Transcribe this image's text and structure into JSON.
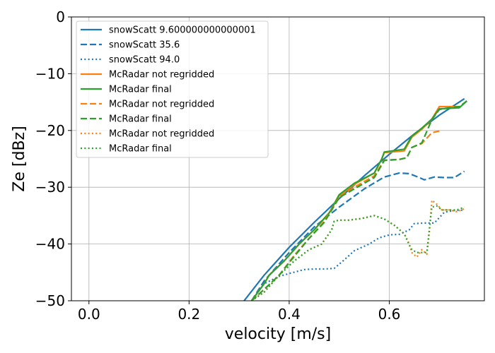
{
  "chart_data": {
    "type": "line",
    "xlabel": "velocity [m/s]",
    "ylabel": "Ze [dBz]",
    "xlim": [
      -0.035,
      0.79
    ],
    "ylim": [
      -50,
      0
    ],
    "xticks": [
      0.0,
      0.2,
      0.4,
      0.6
    ],
    "xtick_labels": [
      "0.0",
      "0.2",
      "0.4",
      "0.6"
    ],
    "yticks": [
      0,
      -10,
      -20,
      -30,
      -40,
      -50
    ],
    "ytick_labels": [
      "0",
      "−10",
      "−20",
      "−30",
      "−40",
      "−50"
    ],
    "grid": true,
    "legend_placement": "upper-left",
    "colors": {
      "blue": "#1f77b4",
      "orange": "#ff7f0e",
      "green": "#2ca02c"
    },
    "series": [
      {
        "name": "snowScatt 9.600000000000001",
        "color": "#1f77b4",
        "style": "solid",
        "x": [
          0.31,
          0.35,
          0.4,
          0.45,
          0.5,
          0.55,
          0.6,
          0.65,
          0.7,
          0.75
        ],
        "y": [
          -50.0,
          -45.5,
          -40.6,
          -36.2,
          -32.0,
          -28.0,
          -24.2,
          -20.6,
          -17.3,
          -14.4
        ]
      },
      {
        "name": "snowScatt 35.6",
        "color": "#1f77b4",
        "style": "dashed",
        "x": [
          0.325,
          0.35,
          0.4,
          0.45,
          0.5,
          0.55,
          0.59,
          0.62,
          0.64,
          0.66,
          0.67,
          0.69,
          0.71,
          0.73,
          0.75
        ],
        "y": [
          -50.0,
          -46.5,
          -41.5,
          -37.0,
          -33.5,
          -30.3,
          -28.2,
          -27.5,
          -27.6,
          -28.3,
          -28.7,
          -28.2,
          -28.3,
          -28.3,
          -27.2
        ]
      },
      {
        "name": "snowScatt 94.0",
        "color": "#1f77b4",
        "style": "dotted",
        "x": [
          0.325,
          0.35,
          0.38,
          0.4,
          0.43,
          0.45,
          0.47,
          0.49,
          0.51,
          0.53,
          0.56,
          0.58,
          0.6,
          0.62,
          0.64,
          0.65,
          0.67,
          0.69,
          0.71,
          0.73,
          0.75
        ],
        "y": [
          -50.0,
          -47.0,
          -45.7,
          -45.2,
          -44.5,
          -44.4,
          -44.4,
          -44.3,
          -42.8,
          -41.2,
          -40.0,
          -38.9,
          -38.4,
          -38.3,
          -37.5,
          -36.4,
          -36.3,
          -36.3,
          -34.4,
          -34.1,
          -34.0
        ]
      },
      {
        "name": "McRadar not regridded",
        "color": "#ff7f0e",
        "style": "solid",
        "x": [
          0.325,
          0.35,
          0.36,
          0.39,
          0.42,
          0.45,
          0.48,
          0.5,
          0.53,
          0.57,
          0.585,
          0.59,
          0.63,
          0.645,
          0.665,
          0.685,
          0.7,
          0.74
        ],
        "y": [
          -50.0,
          -47.0,
          -45.5,
          -43.0,
          -40.0,
          -37.5,
          -34.5,
          -31.5,
          -29.5,
          -27.5,
          -25.0,
          -23.9,
          -23.6,
          -21.2,
          -19.8,
          -18.0,
          -15.8,
          -15.8
        ]
      },
      {
        "name": "McRadar final",
        "color": "#2ca02c",
        "style": "solid",
        "x": [
          0.325,
          0.35,
          0.36,
          0.39,
          0.42,
          0.45,
          0.48,
          0.5,
          0.53,
          0.57,
          0.585,
          0.59,
          0.63,
          0.645,
          0.665,
          0.685,
          0.7,
          0.74,
          0.755
        ],
        "y": [
          -50.0,
          -47.0,
          -45.5,
          -43.0,
          -40.0,
          -37.5,
          -34.5,
          -31.3,
          -29.3,
          -27.5,
          -25.0,
          -23.8,
          -23.3,
          -21.0,
          -19.6,
          -18.0,
          -16.2,
          -16.0,
          -14.8
        ]
      },
      {
        "name": "McRadar not regridded",
        "color": "#ff7f0e",
        "style": "dashed",
        "x": [
          0.325,
          0.35,
          0.38,
          0.41,
          0.44,
          0.47,
          0.5,
          0.53,
          0.57,
          0.59,
          0.62,
          0.635,
          0.645,
          0.665,
          0.685,
          0.7
        ],
        "y": [
          -50.0,
          -48.0,
          -45.5,
          -42.0,
          -39.0,
          -36.0,
          -31.7,
          -30.0,
          -28.0,
          -25.2,
          -25.1,
          -24.8,
          -23.0,
          -22.3,
          -20.4,
          -20.1
        ]
      },
      {
        "name": "McRadar final",
        "color": "#2ca02c",
        "style": "dashed",
        "x": [
          0.325,
          0.35,
          0.38,
          0.41,
          0.44,
          0.47,
          0.5,
          0.53,
          0.57,
          0.59,
          0.62,
          0.635,
          0.645,
          0.665,
          0.685,
          0.7,
          0.72,
          0.74,
          0.755
        ],
        "y": [
          -50.0,
          -48.0,
          -45.5,
          -42.2,
          -39.0,
          -36.2,
          -31.8,
          -30.3,
          -28.3,
          -25.3,
          -25.1,
          -24.8,
          -23.0,
          -22.2,
          -18.1,
          -16.3,
          -16.0,
          -15.8,
          -14.8
        ]
      },
      {
        "name": "McRadar not regridded",
        "color": "#ff7f0e",
        "style": "dotted",
        "x": [
          0.325,
          0.35,
          0.38,
          0.41,
          0.44,
          0.465,
          0.485,
          0.49,
          0.5,
          0.52,
          0.545,
          0.57,
          0.59,
          0.61,
          0.63,
          0.64,
          0.645,
          0.655,
          0.665,
          0.675,
          0.68,
          0.685,
          0.695,
          0.705,
          0.72,
          0.735,
          0.75
        ],
        "y": [
          -50.0,
          -48.5,
          -45.5,
          -43.0,
          -41.0,
          -40.0,
          -37.5,
          -36.0,
          -35.8,
          -35.8,
          -35.5,
          -35.0,
          -35.6,
          -36.7,
          -38.2,
          -40.0,
          -41.5,
          -42.3,
          -41.0,
          -41.8,
          -38.0,
          -32.3,
          -33.0,
          -34.0,
          -34.0,
          -34.3,
          -33.8
        ]
      },
      {
        "name": "McRadar final",
        "color": "#2ca02c",
        "style": "dotted",
        "x": [
          0.325,
          0.35,
          0.38,
          0.41,
          0.44,
          0.465,
          0.485,
          0.49,
          0.5,
          0.52,
          0.545,
          0.57,
          0.59,
          0.61,
          0.63,
          0.64,
          0.645,
          0.655,
          0.665,
          0.675,
          0.68,
          0.685,
          0.695,
          0.705,
          0.72,
          0.735,
          0.75
        ],
        "y": [
          -50.0,
          -48.5,
          -45.5,
          -43.0,
          -41.0,
          -40.0,
          -37.5,
          -36.0,
          -35.8,
          -35.8,
          -35.5,
          -35.0,
          -35.6,
          -36.7,
          -38.2,
          -40.2,
          -41.0,
          -41.5,
          -41.5,
          -41.5,
          -37.5,
          -33.5,
          -33.3,
          -34.0,
          -34.0,
          -34.0,
          -33.5
        ]
      }
    ]
  }
}
